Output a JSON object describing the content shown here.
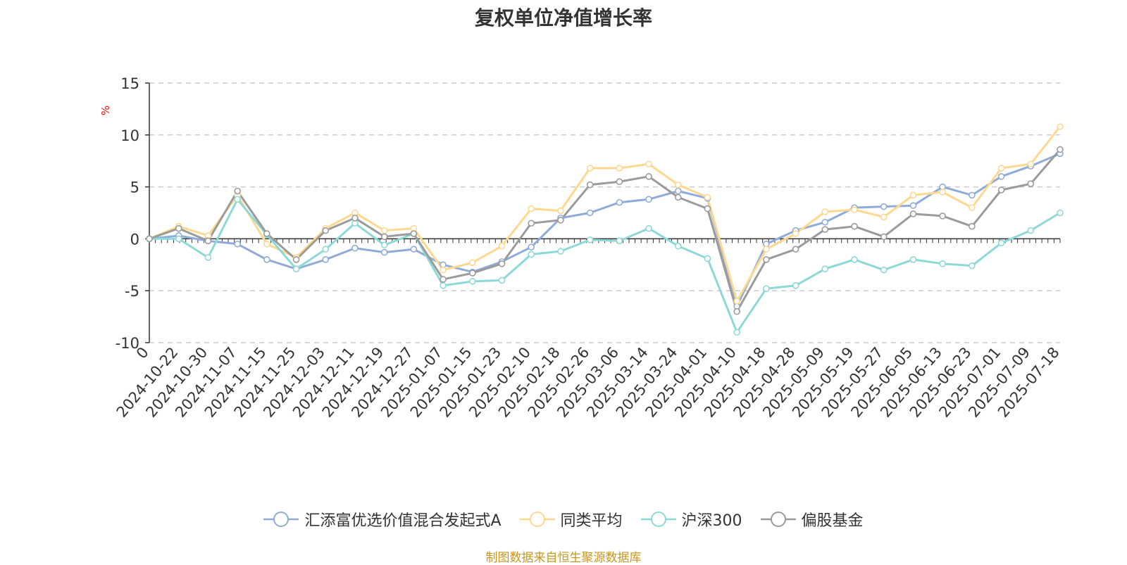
{
  "page": {
    "source_note": "制图数据来自恒生聚源数据库"
  },
  "chart_data": {
    "type": "line",
    "title": "复权单位净值增长率",
    "ylabel": "%",
    "ylim": [
      -10,
      15
    ],
    "yticks": [
      -10,
      -5,
      0,
      5,
      10,
      15
    ],
    "grid": true,
    "legend_position": "bottom",
    "x_tick_labels": [
      "0",
      "2024-10-22",
      "2024-10-30",
      "2024-11-07",
      "2024-11-15",
      "2024-11-25",
      "2024-12-03",
      "2024-12-11",
      "2024-12-19",
      "2024-12-27",
      "2025-01-07",
      "2025-01-15",
      "2025-01-23",
      "2025-02-10",
      "2025-02-18",
      "2025-02-26",
      "2025-03-06",
      "2025-03-14",
      "2025-03-24",
      "2025-04-01",
      "2025-04-10",
      "2025-04-18",
      "2025-04-28",
      "2025-05-09",
      "2025-05-19",
      "2025-05-27",
      "2025-06-05",
      "2025-06-13",
      "2025-06-23",
      "2025-07-01",
      "2025-07-09",
      "2025-07-18"
    ],
    "x_points": 32,
    "series": [
      {
        "name": "汇添富优选价值混合发起式A",
        "color": "#8facd9",
        "values": [
          0,
          0.3,
          -0.2,
          -0.5,
          -2.0,
          -2.9,
          -2.0,
          -0.9,
          -1.3,
          -1.0,
          -2.5,
          -3.2,
          -2.2,
          -0.8,
          2.0,
          2.5,
          3.5,
          3.8,
          4.6,
          3.9,
          -6.5,
          -0.5,
          0.8,
          1.6,
          3.0,
          3.1,
          3.2,
          5.0,
          4.2,
          6.0,
          7.0,
          8.2
        ]
      },
      {
        "name": "同类平均",
        "color": "#ffd88f",
        "values": [
          0,
          1.2,
          0.3,
          4.2,
          -0.5,
          -1.8,
          1.0,
          2.5,
          0.8,
          1.0,
          -3.0,
          -2.3,
          -0.7,
          2.9,
          2.7,
          6.8,
          6.8,
          7.2,
          5.2,
          4.0,
          -6.0,
          -1.0,
          0.5,
          2.6,
          2.8,
          2.1,
          4.2,
          4.5,
          3.0,
          6.8,
          7.2,
          10.8
        ]
      },
      {
        "name": "沪深300",
        "color": "#8dd9d7",
        "values": [
          0,
          0,
          -1.8,
          3.8,
          0.4,
          -2.9,
          -1.0,
          1.5,
          -0.6,
          0.5,
          -4.5,
          -4.1,
          -4.0,
          -1.5,
          -1.2,
          -0.1,
          -0.2,
          1.0,
          -0.7,
          -1.9,
          -9.0,
          -4.8,
          -4.5,
          -2.9,
          -2.0,
          -3.0,
          -2.0,
          -2.4,
          -2.6,
          -0.4,
          0.8,
          2.5
        ]
      },
      {
        "name": "偏股基金",
        "color": "#9b9b9b",
        "values": [
          0,
          1.0,
          -0.2,
          4.6,
          0.5,
          -2.0,
          0.8,
          2.0,
          0.2,
          0.5,
          -3.9,
          -3.3,
          -2.4,
          1.5,
          1.8,
          5.2,
          5.5,
          6.0,
          4.0,
          2.9,
          -7.0,
          -2.0,
          -1.0,
          0.9,
          1.2,
          0.2,
          2.4,
          2.2,
          1.2,
          4.7,
          5.3,
          8.6
        ]
      }
    ]
  }
}
